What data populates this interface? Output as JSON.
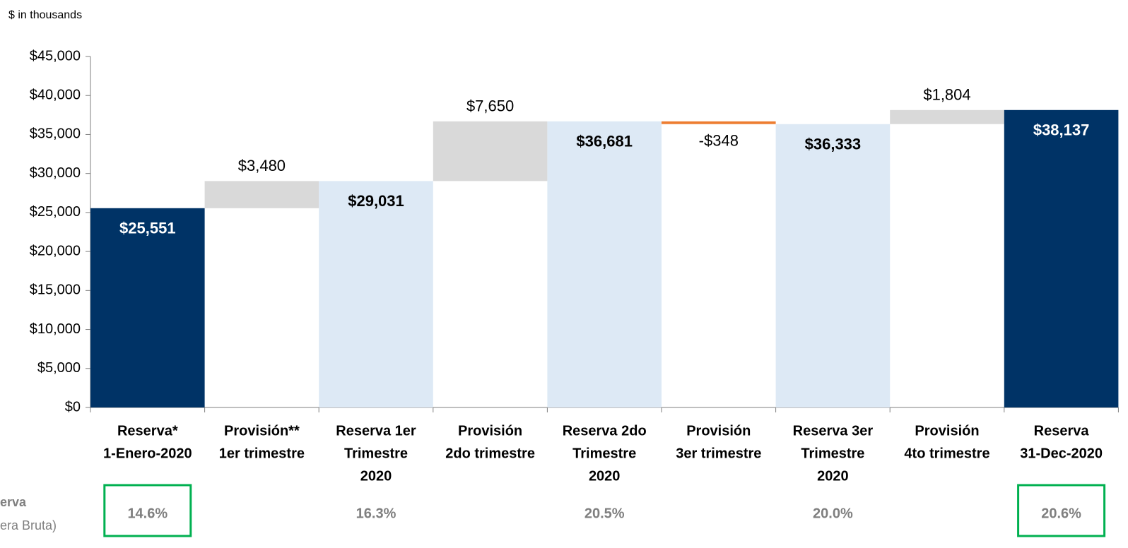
{
  "chart_data": {
    "type": "waterfall",
    "subtitle": "$ in thousands",
    "categories": [
      [
        "Reserva*",
        "1-Enero-2020"
      ],
      [
        "Provisión**",
        "1er trimestre"
      ],
      [
        "Reserva 1er",
        "Trimestre",
        "2020"
      ],
      [
        "Provisión",
        "2do trimestre"
      ],
      [
        "Reserva 2do",
        "Trimestre",
        "2020"
      ],
      [
        "Provisión",
        "3er trimestre"
      ],
      [
        "Reserva 3er",
        "Trimestre",
        "2020"
      ],
      [
        "Provisión",
        "4to trimestre"
      ],
      [
        "Reserva",
        "31-Dec-2020"
      ]
    ],
    "kinds": [
      "total",
      "delta",
      "total",
      "delta",
      "total",
      "delta",
      "total",
      "delta",
      "total"
    ],
    "values": [
      25551,
      3480,
      29031,
      7650,
      36681,
      -348,
      36333,
      1804,
      38137
    ],
    "value_labels": [
      "$25,551",
      "$3,480",
      "$29,031",
      "$7,650",
      "$36,681",
      "-$348",
      "$36,333",
      "$1,804",
      "$38,137"
    ],
    "colors": [
      "#003366",
      "#d9d9d9",
      "#dde9f5",
      "#d9d9d9",
      "#dde9f5",
      "#ed7d31",
      "#dde9f5",
      "#d9d9d9",
      "#003366"
    ],
    "ylim": [
      0,
      45000
    ],
    "yticks": [
      {
        "value": 0,
        "label": "$0"
      },
      {
        "value": 5000,
        "label": "$5,000"
      },
      {
        "value": 10000,
        "label": "$10,000"
      },
      {
        "value": 15000,
        "label": "$15,000"
      },
      {
        "value": 20000,
        "label": "$20,000"
      },
      {
        "value": 25000,
        "label": "$25,000"
      },
      {
        "value": 30000,
        "label": "$30,000"
      },
      {
        "value": 35000,
        "label": "$35,000"
      },
      {
        "value": 40000,
        "label": "$40,000"
      },
      {
        "value": 45000,
        "label": "$45,000"
      }
    ],
    "row_label": [
      "erva",
      "era Bruta)"
    ],
    "ratios": [
      14.6,
      null,
      16.3,
      null,
      20.5,
      null,
      20.0,
      null,
      20.6
    ],
    "ratio_labels": [
      "14.6%",
      null,
      "16.3%",
      null,
      "20.5%",
      null,
      "20.0%",
      null,
      "20.6%"
    ],
    "highlight": [
      0,
      8
    ],
    "highlight_color": "#00b050"
  }
}
